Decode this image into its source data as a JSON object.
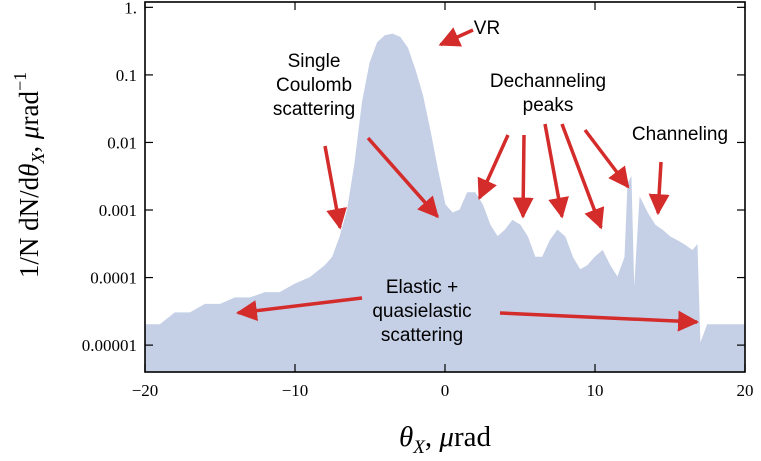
{
  "chart_data": {
    "type": "area",
    "xlabel": "θ_X, μrad",
    "ylabel": "1/N dN/dθ_X, μrad⁻¹",
    "xlim": [
      -20,
      20
    ],
    "ylim": [
      4e-06,
      1.2
    ],
    "yscale": "log",
    "x_ticks": [
      -20,
      -10,
      0,
      10,
      20
    ],
    "x_tick_labels": [
      "−20",
      "−10",
      "0",
      "10",
      "20"
    ],
    "y_ticks": [
      1,
      0.1,
      0.01,
      0.001,
      0.0001,
      1e-05
    ],
    "y_tick_labels": [
      "1.",
      "0.1",
      "0.01",
      "0.001",
      "0.0001",
      "0.00001"
    ],
    "fill_color": "#c5d0e6",
    "arrow_color": "#d42b2b",
    "series": [
      {
        "x": [
          -20,
          -19,
          -18,
          -17,
          -16,
          -15,
          -14,
          -13,
          -12,
          -11,
          -10,
          -9,
          -8,
          -7.5,
          -7,
          -6.5,
          -6,
          -5.5,
          -5,
          -4.5,
          -4,
          -3.5,
          -3,
          -2.5,
          -2,
          -1.5,
          -1,
          -0.5,
          0,
          0.5,
          1,
          1.5,
          2,
          2.5,
          3,
          3.5,
          4,
          4.5,
          5,
          5.5,
          6,
          6.5,
          7,
          7.5,
          8,
          8.5,
          9,
          9.5,
          10,
          10.5,
          11,
          11.5,
          12,
          12.2,
          12.4,
          12.6,
          13,
          13.5,
          14,
          14.5,
          15,
          15.5,
          16,
          16.5,
          16.8,
          17,
          17.5,
          18,
          19,
          20
        ],
        "y": [
          2e-05,
          2e-05,
          3e-05,
          3e-05,
          4e-05,
          4e-05,
          5e-05,
          5e-05,
          6e-05,
          6e-05,
          8e-05,
          0.0001,
          0.00015,
          0.0002,
          0.0004,
          0.001,
          0.005,
          0.04,
          0.15,
          0.3,
          0.38,
          0.4,
          0.36,
          0.25,
          0.12,
          0.05,
          0.015,
          0.004,
          0.0012,
          0.0009,
          0.001,
          0.0018,
          0.0018,
          0.0012,
          0.0006,
          0.0004,
          0.0005,
          0.0007,
          0.0006,
          0.0004,
          0.0002,
          0.0002,
          0.00035,
          0.0005,
          0.0004,
          0.0002,
          0.00013,
          0.00015,
          0.0002,
          0.00025,
          0.00015,
          0.0001,
          0.0002,
          0.0025,
          0.003,
          5e-05,
          0.0015,
          0.0009,
          0.0006,
          0.0005,
          0.0004,
          0.00035,
          0.0003,
          0.00025,
          0.0003,
          1e-05,
          2e-05,
          2e-05,
          2e-05,
          2e-05
        ]
      }
    ],
    "annotations": [
      {
        "id": "vr",
        "lines": [
          "VR"
        ],
        "arrows": [
          [
            -0.3,
            0.28
          ]
        ]
      },
      {
        "id": "coulomb",
        "lines": [
          "Single",
          "Coulomb",
          "scattering"
        ],
        "arrows": [
          [
            -7,
            0.00055
          ],
          [
            -0.5,
            0.0008
          ]
        ]
      },
      {
        "id": "dechanneling",
        "lines": [
          "Dechanneling",
          "peaks"
        ],
        "arrows": [
          [
            2.3,
            0.0015
          ],
          [
            5.2,
            0.0008
          ],
          [
            7.8,
            0.0008
          ],
          [
            10.4,
            0.00055
          ],
          [
            12.2,
            0.0022
          ]
        ]
      },
      {
        "id": "channeling",
        "lines": [
          "Channeling"
        ],
        "arrows": [
          [
            14.2,
            0.0009
          ]
        ]
      },
      {
        "id": "elastic",
        "lines": [
          "Elastic +",
          "quasielastic",
          "scattering"
        ],
        "arrows": [
          [
            -13.8,
            3e-05
          ],
          [
            16.8,
            2.2e-05
          ]
        ]
      }
    ]
  }
}
